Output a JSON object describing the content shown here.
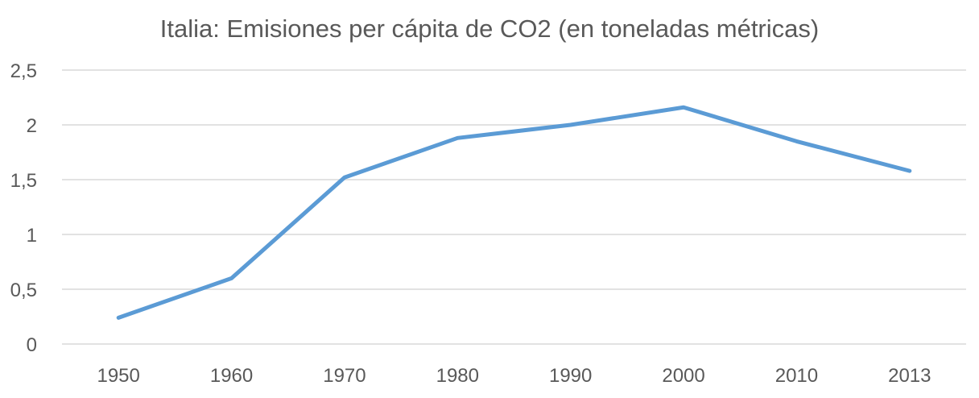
{
  "chart_data": {
    "type": "line",
    "title": "Italia: Emisiones per cápita de CO2 (en toneladas métricas)",
    "xlabel": "",
    "ylabel": "",
    "categories": [
      "1950",
      "1960",
      "1970",
      "1980",
      "1990",
      "2000",
      "2010",
      "2013"
    ],
    "series": [
      {
        "values": [
          0.24,
          0.6,
          1.52,
          1.88,
          2.0,
          2.16,
          1.85,
          1.58
        ],
        "color": "#5B9BD5"
      }
    ],
    "ylim": [
      0,
      2.5
    ],
    "yticks": [
      0,
      0.5,
      1,
      1.5,
      2,
      2.5
    ],
    "ytick_labels": [
      "0",
      "0,5",
      "1",
      "1,5",
      "2",
      "2,5"
    ],
    "grid": true,
    "legend": "none"
  }
}
